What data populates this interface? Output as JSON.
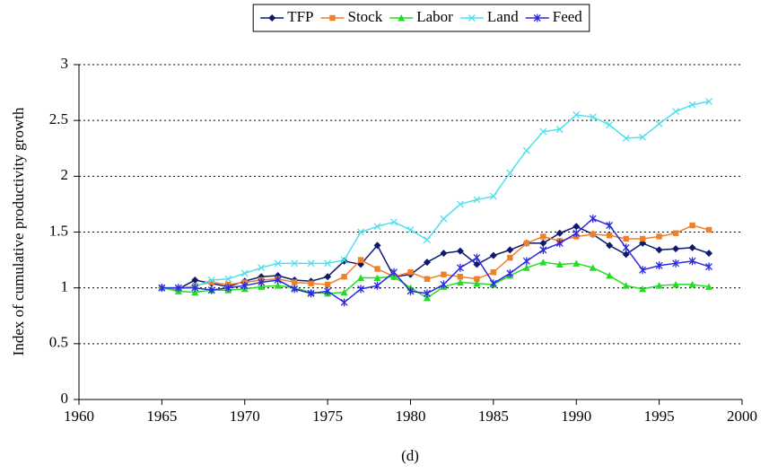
{
  "chart_data": {
    "type": "line",
    "y_label": "Index of cumulative productivity growth",
    "caption": "(d)",
    "x": [
      1965,
      1966,
      1967,
      1968,
      1969,
      1970,
      1971,
      1972,
      1973,
      1974,
      1975,
      1976,
      1977,
      1978,
      1979,
      1980,
      1981,
      1982,
      1983,
      1984,
      1985,
      1986,
      1987,
      1988,
      1989,
      1990,
      1991,
      1992,
      1993,
      1994,
      1995,
      1996,
      1997,
      1998
    ],
    "series": [
      {
        "name": "TFP",
        "color": "#0d1a6e",
        "marker": "diamond",
        "values": [
          1.0,
          0.99,
          1.07,
          1.04,
          1.01,
          1.06,
          1.1,
          1.11,
          1.07,
          1.06,
          1.1,
          1.24,
          1.21,
          1.38,
          1.1,
          1.12,
          1.23,
          1.31,
          1.33,
          1.21,
          1.29,
          1.34,
          1.4,
          1.4,
          1.49,
          1.55,
          1.48,
          1.38,
          1.3,
          1.4,
          1.34,
          1.35,
          1.36,
          1.31
        ]
      },
      {
        "name": "Stock",
        "color": "#f07f2a",
        "marker": "square",
        "values": [
          1.0,
          0.99,
          1.02,
          1.05,
          1.03,
          1.05,
          1.07,
          1.08,
          1.05,
          1.04,
          1.03,
          1.1,
          1.25,
          1.17,
          1.1,
          1.14,
          1.08,
          1.12,
          1.1,
          1.08,
          1.14,
          1.27,
          1.4,
          1.46,
          1.42,
          1.46,
          1.48,
          1.47,
          1.44,
          1.44,
          1.46,
          1.49,
          1.56,
          1.52
        ]
      },
      {
        "name": "Labor",
        "color": "#22dd22",
        "marker": "triangle",
        "values": [
          1.0,
          0.97,
          0.96,
          0.98,
          0.98,
          0.99,
          1.01,
          1.02,
          1.0,
          0.96,
          0.95,
          0.96,
          1.09,
          1.09,
          1.1,
          1.0,
          0.91,
          1.01,
          1.05,
          1.04,
          1.03,
          1.11,
          1.18,
          1.23,
          1.21,
          1.22,
          1.18,
          1.11,
          1.02,
          0.99,
          1.02,
          1.03,
          1.03,
          1.01
        ]
      },
      {
        "name": "Land",
        "color": "#4ee0ee",
        "marker": "x",
        "values": [
          1.0,
          1.0,
          1.01,
          1.07,
          1.08,
          1.13,
          1.18,
          1.22,
          1.22,
          1.22,
          1.22,
          1.25,
          1.5,
          1.55,
          1.59,
          1.52,
          1.43,
          1.62,
          1.75,
          1.79,
          1.82,
          2.03,
          2.23,
          2.4,
          2.42,
          2.55,
          2.53,
          2.46,
          2.34,
          2.35,
          2.47,
          2.58,
          2.64,
          2.67
        ]
      },
      {
        "name": "Feed",
        "color": "#2a2ae0",
        "marker": "asterisk",
        "values": [
          1.0,
          1.0,
          1.0,
          0.98,
          1.0,
          1.02,
          1.05,
          1.07,
          0.99,
          0.95,
          0.97,
          0.87,
          0.99,
          1.02,
          1.14,
          0.97,
          0.95,
          1.03,
          1.18,
          1.27,
          1.04,
          1.13,
          1.24,
          1.34,
          1.4,
          1.49,
          1.62,
          1.56,
          1.36,
          1.16,
          1.2,
          1.22,
          1.24,
          1.19
        ]
      }
    ],
    "xlim": [
      1960,
      2000
    ],
    "xticks": [
      1960,
      1965,
      1970,
      1975,
      1980,
      1985,
      1990,
      1995,
      2000
    ],
    "ylim": [
      0,
      3
    ],
    "yticks": [
      0,
      0.5,
      1,
      1.5,
      2,
      2.5,
      3
    ],
    "grid": true,
    "legend": "top"
  }
}
